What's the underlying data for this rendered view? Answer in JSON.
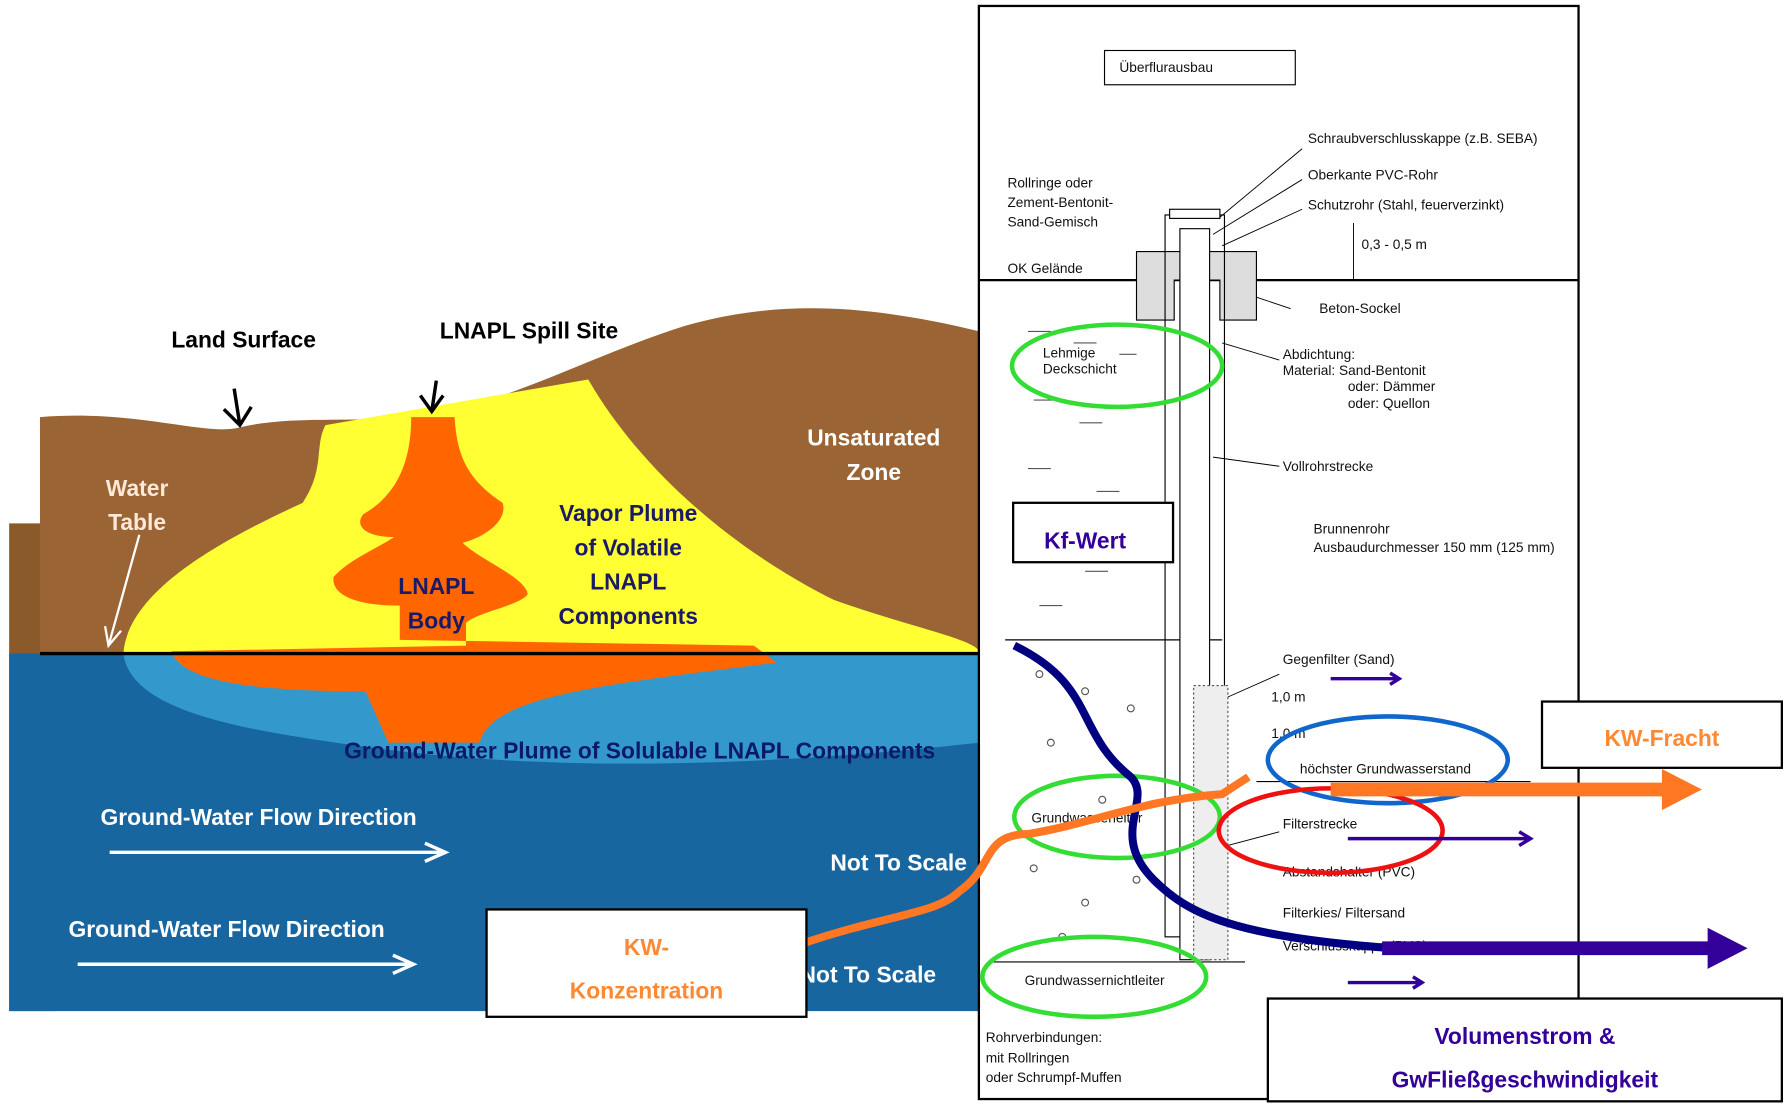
{
  "left": {
    "land_surface": "Land Surface",
    "spill_site": "LNAPL Spill Site",
    "unsaturated_zone": [
      "Unsaturated",
      "Zone"
    ],
    "water_table": [
      "Water",
      "Table"
    ],
    "vapor_plume": [
      "Vapor Plume",
      "of Volatile",
      "LNAPL",
      "Components"
    ],
    "lnapl_body": [
      "LNAPL",
      "Body"
    ],
    "gw_plume": "Ground-Water Plume of Solulable LNAPL Components",
    "flow_direction": [
      "Ground-Water Flow Direction",
      "Ground-Water Flow Direction"
    ],
    "not_to_scale": [
      "Not To Scale",
      "Not To Scale"
    ]
  },
  "right": {
    "title": "Überflurausbau",
    "callouts": [
      "Schraubverschlusskappe (z.B. SEBA)",
      "Oberkante PVC-Rohr",
      "Schutzrohr (Stahl, feuerverzinkt)",
      "0,3 - 0,5 m",
      "Beton-Sockel",
      "Abdichtung:",
      "Material: Sand-Bentonit",
      "oder: Dämmer",
      "oder: Quellon",
      "Vollrohrstrecke",
      "Brunnenrohr",
      "Ausbaudurchmesser 150 mm  (125 mm)",
      "Gegenfilter (Sand)",
      "1,0 m",
      "1,0 m",
      "höchster Grundwasserstand",
      "Filterstrecke",
      "Abstandshalter (PVC)",
      "Filterkies/ Filtersand",
      "Verschlusskappe (PVC)"
    ],
    "left_labels": [
      "Rollringe oder",
      "Zement-Bentonit-",
      "Sand-Gemisch",
      "OK Gelände",
      "Lehmige",
      "Deckschicht",
      "Grundwasserleiter",
      "Grundwassernichtleiter",
      "Rohrverbindungen:",
      "mit Rollringen",
      "oder Schrumpf-Muffen"
    ]
  },
  "overlays": {
    "kf_wert": "Kf-Wert",
    "kw_fracht": "KW-Fracht",
    "kw_konzentration": [
      "KW-",
      "Konzentration"
    ],
    "volumenstrom": [
      "Volumenstrom &",
      "GwFließgeschwindigkeit"
    ]
  }
}
